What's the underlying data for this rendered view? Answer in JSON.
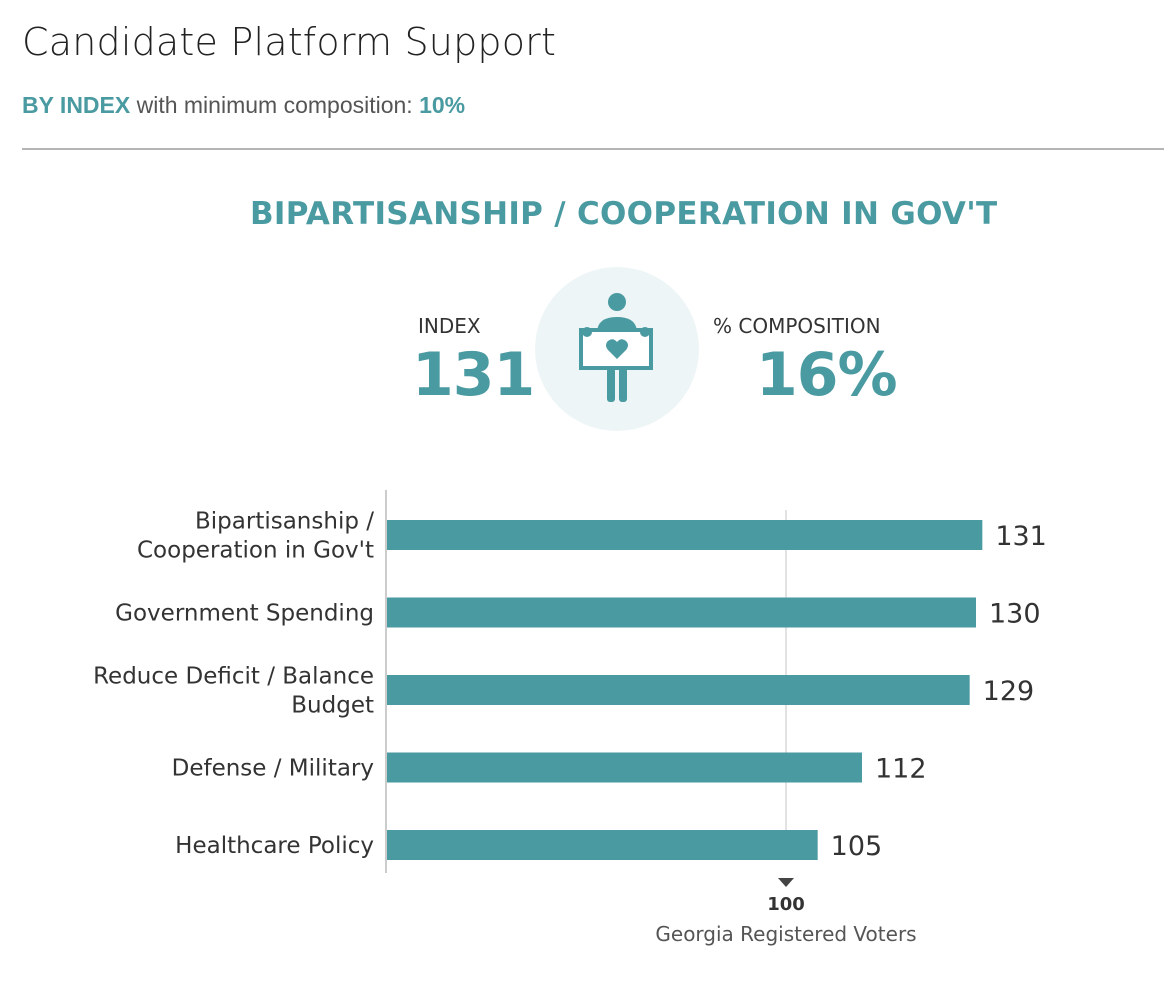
{
  "header": {
    "title": "Candidate Platform Support",
    "subtitle_prefix": "BY INDEX",
    "subtitle_middle": " with minimum composition: ",
    "subtitle_value": "10%"
  },
  "highlight": {
    "title": "BIPARTISANSHIP / COOPERATION IN GOV'T",
    "index_label": "INDEX",
    "index_value": "131",
    "composition_label": "% COMPOSITION",
    "composition_value": "16%",
    "icon": "person-holding-heart-sign-icon"
  },
  "colors": {
    "accent": "#4a9aa1",
    "icon_bg": "#eef5f6",
    "axis": "#cccccc"
  },
  "chart_data": {
    "type": "bar",
    "orientation": "horizontal",
    "categories": [
      [
        "Bipartisanship /",
        "Cooperation in Gov't"
      ],
      [
        "Government Spending"
      ],
      [
        "Reduce Deficit / Balance",
        "Budget"
      ],
      [
        "Defense / Military"
      ],
      [
        "Healthcare Policy"
      ]
    ],
    "values": [
      131,
      130,
      129,
      112,
      105
    ],
    "xlim": [
      37,
      139
    ],
    "reference_line": {
      "value": 100,
      "label": "100",
      "caption": "Georgia Registered Voters"
    }
  }
}
